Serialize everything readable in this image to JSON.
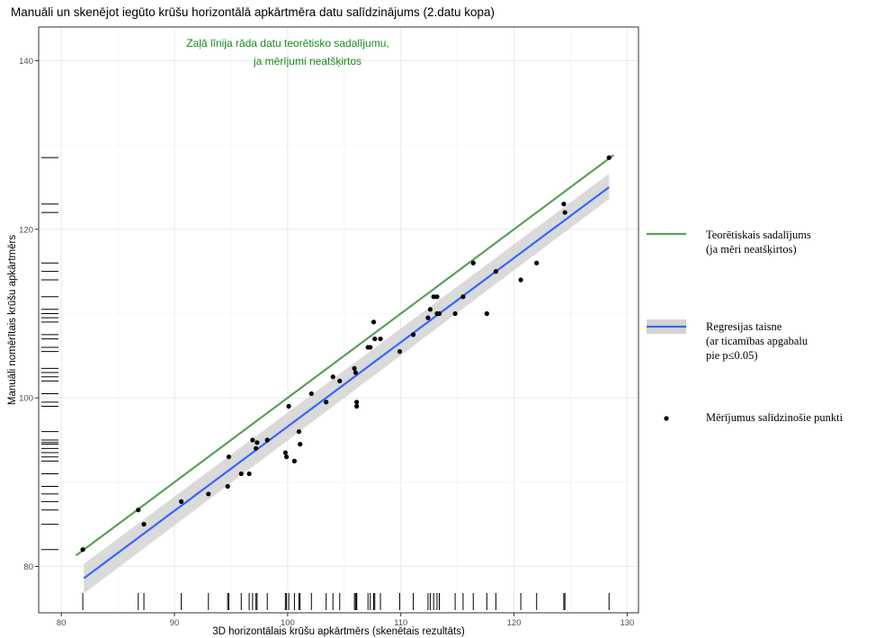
{
  "chart_data": {
    "type": "scatter",
    "title": "Manuāli un skenējot iegūto krūšu horizontālā apkārtmēra datu salīdzinājums (2.datu kopa)",
    "xlabel": "3D horizontālais krūšu apkārtmērs (skenētais rezultāts)",
    "ylabel": "Manuāli nomērītais krūšu apkārtmērs",
    "xlim": [
      78,
      131
    ],
    "ylim": [
      74.5,
      144
    ],
    "xticks": [
      "80",
      "90",
      "100",
      "110",
      "120",
      "130"
    ],
    "yticks": [
      "80",
      "100",
      "120",
      "140"
    ],
    "grid": true,
    "annotation": [
      "Zaļā līnija rāda datu teorētisko sadalījumu,",
      "ja mērījumi neatšķirtos"
    ],
    "points": [
      [
        81.9,
        82
      ],
      [
        86.8,
        86.7
      ],
      [
        87.3,
        85
      ],
      [
        90.6,
        87.7
      ],
      [
        93,
        88.6
      ],
      [
        94.7,
        89.5
      ],
      [
        94.8,
        93
      ],
      [
        95.9,
        91
      ],
      [
        96.6,
        91
      ],
      [
        96.9,
        95
      ],
      [
        97.2,
        94
      ],
      [
        97.3,
        94.7
      ],
      [
        98.2,
        95
      ],
      [
        99.8,
        93.5
      ],
      [
        99.9,
        93
      ],
      [
        100.1,
        99
      ],
      [
        100.6,
        92.5
      ],
      [
        101,
        96
      ],
      [
        101.1,
        94.5
      ],
      [
        102.1,
        100.5
      ],
      [
        103.4,
        99.5
      ],
      [
        104,
        102.5
      ],
      [
        104.6,
        102
      ],
      [
        105.9,
        103.5
      ],
      [
        106,
        103
      ],
      [
        106.1,
        99.5
      ],
      [
        106.1,
        99
      ],
      [
        107.1,
        106
      ],
      [
        107.3,
        106
      ],
      [
        107.6,
        109
      ],
      [
        107.7,
        107
      ],
      [
        108.2,
        107
      ],
      [
        109.9,
        105.5
      ],
      [
        111.1,
        107.5
      ],
      [
        112.4,
        109.5
      ],
      [
        112.6,
        110.5
      ],
      [
        112.9,
        112
      ],
      [
        113.2,
        110
      ],
      [
        113.2,
        112
      ],
      [
        113.4,
        110
      ],
      [
        114.8,
        110
      ],
      [
        115.5,
        112
      ],
      [
        116.4,
        116
      ],
      [
        117.6,
        110
      ],
      [
        118.4,
        115
      ],
      [
        120.6,
        114
      ],
      [
        122,
        116
      ],
      [
        124.4,
        123
      ],
      [
        124.5,
        122
      ],
      [
        128.4,
        128.5
      ]
    ],
    "series": [
      {
        "name": "Teorētiskais sadalījums (ja mēri neatšķirtos)",
        "color": "#5aa05a",
        "x": [
          81.3,
          128.8
        ],
        "y": [
          81.3,
          128.8
        ]
      },
      {
        "name": "Regresijas taisne (ar ticamības apgabalu pie p≤0.05)",
        "color": "#3366ff",
        "x": [
          82,
          128.4
        ],
        "y": [
          78.6,
          125
        ],
        "band_lower": [
          76.8,
          123.6
        ],
        "band_upper": [
          80.3,
          126.6
        ]
      }
    ],
    "rug_y": [
      82,
      85,
      86.7,
      87.7,
      88.6,
      89.5,
      91,
      92.5,
      93,
      93.5,
      94,
      94.5,
      94.7,
      95,
      96,
      99,
      99.5,
      100.5,
      102,
      102.5,
      103,
      103.5,
      105.5,
      106,
      107,
      107.5,
      109,
      109.5,
      110,
      110.5,
      112,
      114,
      115,
      116,
      122,
      123,
      128.5
    ],
    "legend": {
      "position": "right",
      "items": [
        {
          "name": "line-legend-theory",
          "label_lines": [
            "Teorētiskais sadalījums",
            "(ja mēri neatšķirtos)"
          ]
        },
        {
          "name": "line-legend-regression",
          "label_lines": [
            "Regresijas taisne",
            "(ar ticamības apgabalu",
            "pie p≤0.05)"
          ]
        },
        {
          "name": "point-legend",
          "label_lines": [
            "Mērījumus salīdzinošie punkti"
          ]
        }
      ]
    }
  },
  "colors": {
    "theory": "#5aa05a",
    "regression": "#3366ff",
    "band": "#d4d4d4",
    "point": "#000000",
    "grid": "#ebebeb",
    "annotation": "#1a8a1a"
  }
}
